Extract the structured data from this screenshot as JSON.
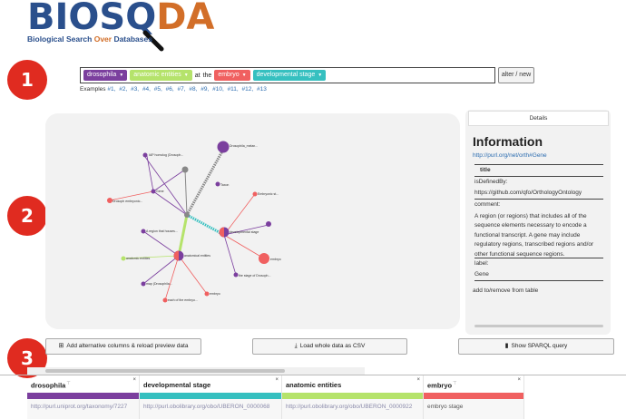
{
  "logo": {
    "title_part1": "BIOS",
    "title_part2": "Q",
    "title_part3": "DA",
    "subtitle_part1": "Biological Search ",
    "subtitle_part2": "Over",
    "subtitle_part3": " Databases"
  },
  "steps": [
    "1",
    "2",
    "3"
  ],
  "query": {
    "chips": [
      {
        "label": "drosophila",
        "color": "#7b3f9e"
      },
      {
        "label": "anatomic entities",
        "color": "#b5e36b"
      },
      {
        "label": "embryo",
        "color": "#f06060"
      },
      {
        "label": "developmental stage",
        "color": "#36c0c0"
      }
    ],
    "word_at": "at",
    "word_the": "the",
    "alter_button": "alter / new",
    "examples_label": "Examples",
    "examples": [
      "#1,",
      "#2,",
      "#3,",
      "#4,",
      "#5,",
      "#6,",
      "#7,",
      "#8,",
      "#9,",
      "#10,",
      "#11,",
      "#12,",
      "#13"
    ]
  },
  "graph_labels": {
    "l1": "IAP homolog (Drosoph...",
    "l2": "Gene",
    "l3": "Drosoph embryonic...",
    "l4": "Drosophila_melan...",
    "l5": "Taxon",
    "l6": "Embryonic st...",
    "l7": "developmental stage",
    "l8": "embryo",
    "l9": "the stage of Drosoph...",
    "l10": "A region that houses...",
    "l11": "anatomical entities",
    "l12": "anatomic entities",
    "l13": "map (Drosophila...",
    "l14": "embryo",
    "l15": "each of the embryo..."
  },
  "details": {
    "tab": "Details",
    "heading": "Information",
    "link": "http://purl.org/net/orth#Gene",
    "title_label": "title",
    "defined_by_label": "isDefinedBy:",
    "defined_by_value": "https://github.com/qfo/OrthologyOntology",
    "comment_label": "comment:",
    "comment_value": "A region (or regions) that includes all of the sequence elements necessary to encode a functional transcript. A gene may include regulatory regions, transcribed regions and/or other functional sequence regions.",
    "label_label": "label:",
    "label_value": "Gene",
    "add_remove": "add to/remove from table"
  },
  "buttons": {
    "add_columns": "Add alternative columns & reload preview data",
    "load_csv": "Load whole data as CSV",
    "show_sparql": "Show SPARQL query"
  },
  "table": {
    "columns": [
      {
        "header": "drosophila",
        "filter": "⊤",
        "color": "#7b3f9e",
        "value": "http://purl.uniprot.org/taxonomy/7227"
      },
      {
        "header": "developmental stage",
        "filter": "",
        "color": "#36c0c0",
        "value": "http://purl.obolibrary.org/obo/UBERON_0000068"
      },
      {
        "header": "anatomic entities",
        "filter": "",
        "color": "#b5e36b",
        "value": "http://purl.obolibrary.org/obo/UBERON_0000922"
      },
      {
        "header": "embryo",
        "filter": "⊤",
        "color": "#f06060",
        "value": "embryo stage"
      }
    ],
    "close_symbol": "×"
  }
}
